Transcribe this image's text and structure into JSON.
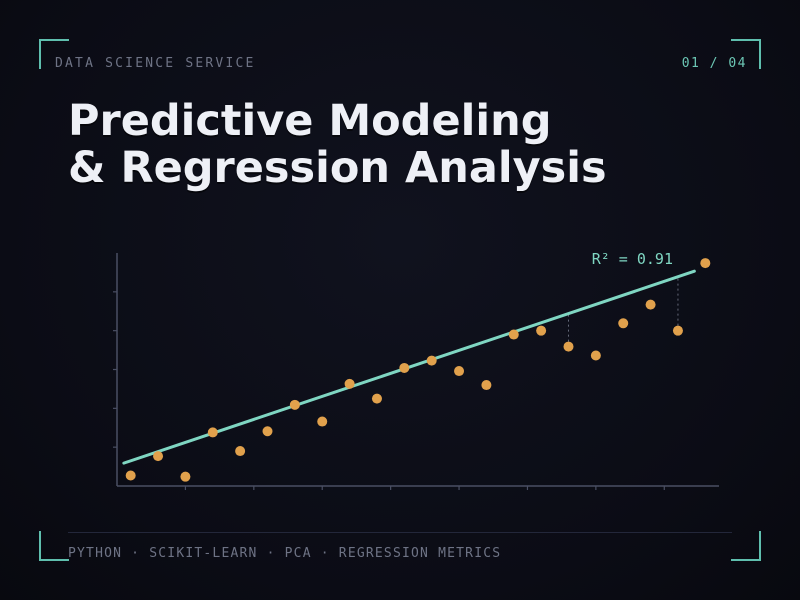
{
  "header": {
    "eyebrow": "DATA SCIENCE SERVICE",
    "pager": "01 / 04",
    "title_line1": "Predictive Modeling",
    "title_line2": "& Regression Analysis"
  },
  "footer": {
    "tags": "PYTHON · SCIKIT-LEARN · PCA · REGRESSION METRICS"
  },
  "colors": {
    "accent": "#7fd6c2",
    "points": "#e1a14c",
    "axis": "#4a4f63",
    "residual": "#8a8fa2"
  },
  "chart_data": {
    "type": "scatter",
    "title": "",
    "xlabel": "",
    "ylabel": "",
    "annotation": "R² = 0.91",
    "xlim": [
      0,
      22
    ],
    "ylim": [
      0,
      6
    ],
    "grid": false,
    "points": [
      {
        "x": 0.5,
        "y": 0.27
      },
      {
        "x": 1.5,
        "y": 0.77
      },
      {
        "x": 2.5,
        "y": 0.24
      },
      {
        "x": 3.5,
        "y": 1.38
      },
      {
        "x": 4.5,
        "y": 0.9
      },
      {
        "x": 5.5,
        "y": 1.41
      },
      {
        "x": 6.5,
        "y": 2.09
      },
      {
        "x": 7.5,
        "y": 1.66
      },
      {
        "x": 8.5,
        "y": 2.63
      },
      {
        "x": 9.5,
        "y": 2.25
      },
      {
        "x": 10.5,
        "y": 3.04
      },
      {
        "x": 11.5,
        "y": 3.23
      },
      {
        "x": 12.5,
        "y": 2.96
      },
      {
        "x": 13.5,
        "y": 2.6
      },
      {
        "x": 14.5,
        "y": 3.9
      },
      {
        "x": 15.5,
        "y": 4.0
      },
      {
        "x": 16.5,
        "y": 3.59
      },
      {
        "x": 17.5,
        "y": 3.36
      },
      {
        "x": 18.5,
        "y": 4.19
      },
      {
        "x": 19.5,
        "y": 4.67
      },
      {
        "x": 20.5,
        "y": 4.0
      },
      {
        "x": 21.5,
        "y": 5.74
      }
    ],
    "fit": {
      "slope": 0.237,
      "intercept": 0.53,
      "x_start": 0.25,
      "x_end": 21.1
    },
    "residual_points": [
      3,
      16,
      20
    ]
  }
}
